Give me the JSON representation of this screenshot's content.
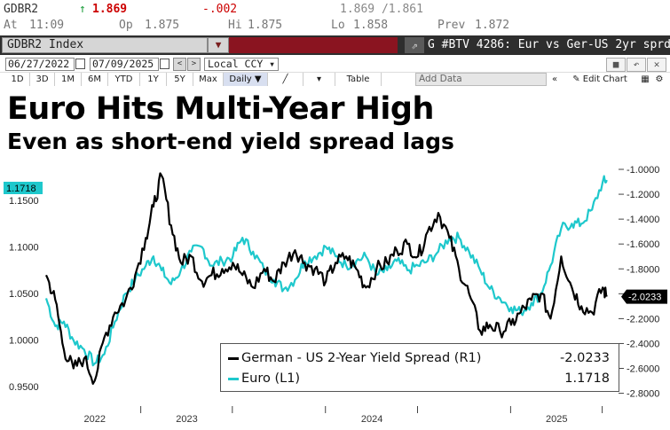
{
  "quote": {
    "ticker": "GDBR2",
    "arrow": "↑",
    "last": "1.869",
    "change": "-.002",
    "range": "1.869 /1.861",
    "at_label": "At",
    "time": "11:09",
    "open_label": "Op",
    "open": "1.875",
    "high_label": "Hi",
    "high": "1.875",
    "low_label": "Lo",
    "low": "1.858",
    "prev_label": "Prev",
    "prev": "1.872"
  },
  "security_bar": {
    "ticker_field": "GDBR2 Index",
    "dropdown_glyph": "▼",
    "external_glyph": "⇗",
    "title": "G #BTV 4286: Eur vs Ger-US 2yr sprd"
  },
  "date_bar": {
    "start_date": "06/27/2022",
    "end_date": "07/09/2025",
    "prev_glyph": "<",
    "next_glyph": ">",
    "currency": "Local CCY",
    "currency_glyph": "▾"
  },
  "timeframe_bar": {
    "buttons": [
      "1D",
      "3D",
      "1M",
      "6M",
      "YTD",
      "1Y",
      "5Y",
      "Max"
    ],
    "frequency": "Daily ▼",
    "table_label": "Table",
    "add_data_placeholder": "Add Data",
    "edit_chart": "Edit Chart",
    "collapse_glyph": "«"
  },
  "headline": {
    "title": "Euro Hits Multi-Year High",
    "subtitle": "Even as short-end yield spread lags"
  },
  "colors": {
    "euro": "#1ec8cc",
    "spread": "#000000",
    "last_up": "#cc0000",
    "change_down": "#cc0000",
    "title_bar": "#8a1420"
  },
  "chart_data": {
    "type": "line",
    "x_ticks": [
      "2022",
      "2023",
      "2024",
      "2025"
    ],
    "left_axis": {
      "ticks": [
        "0.9500",
        "1.0000",
        "1.0500",
        "1.1000",
        "1.1500"
      ],
      "range": [
        0.935,
        1.19
      ]
    },
    "right_axis": {
      "ticks": [
        "-2.8000",
        "-2.6000",
        "-2.4000",
        "-2.2000",
        "-2.0000",
        "-1.8000",
        "-1.6000",
        "-1.4000",
        "-1.2000",
        "-1.0000"
      ],
      "range": [
        -2.86,
        -0.95
      ]
    },
    "series": [
      {
        "name": "German - US 2-Year Yield Spread (R1)",
        "axis": "right",
        "last_label": "-2.0233",
        "x": [
          "2022-06-27",
          "2022-07-15",
          "2022-08-01",
          "2022-08-20",
          "2022-09-10",
          "2022-10-01",
          "2022-10-20",
          "2022-11-10",
          "2022-12-01",
          "2022-12-20",
          "2023-01-10",
          "2023-01-25",
          "2023-02-10",
          "2023-03-01",
          "2023-03-20",
          "2023-04-10",
          "2023-05-01",
          "2023-05-20",
          "2023-06-10",
          "2023-07-01",
          "2023-07-20",
          "2023-08-10",
          "2023-09-01",
          "2023-09-20",
          "2023-10-10",
          "2023-11-01",
          "2023-11-20",
          "2023-12-10",
          "2024-01-01",
          "2024-01-20",
          "2024-02-10",
          "2024-03-01",
          "2024-03-20",
          "2024-04-10",
          "2024-05-01",
          "2024-05-20",
          "2024-06-10",
          "2024-07-01",
          "2024-07-20",
          "2024-08-10",
          "2024-09-01",
          "2024-09-20",
          "2024-10-10",
          "2024-11-01",
          "2024-11-20",
          "2024-12-10",
          "2025-01-01",
          "2025-01-20",
          "2025-02-10",
          "2025-03-01",
          "2025-03-20",
          "2025-04-10",
          "2025-05-01",
          "2025-05-20",
          "2025-06-10",
          "2025-07-01",
          "2025-07-09"
        ],
        "values": [
          -1.85,
          -2.05,
          -2.45,
          -2.6,
          -2.52,
          -2.7,
          -2.35,
          -2.15,
          -2.05,
          -1.85,
          -1.55,
          -1.3,
          -1.05,
          -1.45,
          -1.75,
          -1.7,
          -1.9,
          -1.85,
          -1.8,
          -1.75,
          -1.85,
          -1.95,
          -1.8,
          -1.9,
          -1.75,
          -1.65,
          -1.75,
          -1.8,
          -1.9,
          -1.75,
          -1.7,
          -1.8,
          -1.95,
          -1.8,
          -1.75,
          -1.65,
          -1.6,
          -1.7,
          -1.5,
          -1.35,
          -1.55,
          -1.8,
          -2.0,
          -2.3,
          -2.25,
          -2.3,
          -2.25,
          -2.15,
          -2.05,
          -2.0,
          -2.2,
          -1.7,
          -1.95,
          -2.1,
          -2.15,
          -1.95,
          -2.0233
        ]
      },
      {
        "name": "Euro (L1)",
        "axis": "left",
        "last_label": "1.1718",
        "x": [
          "2022-06-27",
          "2022-07-15",
          "2022-08-01",
          "2022-08-20",
          "2022-09-10",
          "2022-10-01",
          "2022-10-20",
          "2022-11-10",
          "2022-12-01",
          "2022-12-20",
          "2023-01-10",
          "2023-01-25",
          "2023-02-10",
          "2023-03-01",
          "2023-03-20",
          "2023-04-10",
          "2023-05-01",
          "2023-05-20",
          "2023-06-10",
          "2023-07-01",
          "2023-07-20",
          "2023-08-10",
          "2023-09-01",
          "2023-09-20",
          "2023-10-10",
          "2023-11-01",
          "2023-11-20",
          "2023-12-10",
          "2024-01-01",
          "2024-01-20",
          "2024-02-10",
          "2024-03-01",
          "2024-03-20",
          "2024-04-10",
          "2024-05-01",
          "2024-05-20",
          "2024-06-10",
          "2024-07-01",
          "2024-07-20",
          "2024-08-10",
          "2024-09-01",
          "2024-09-20",
          "2024-10-10",
          "2024-11-01",
          "2024-11-20",
          "2024-12-10",
          "2025-01-01",
          "2025-01-20",
          "2025-02-10",
          "2025-03-01",
          "2025-03-20",
          "2025-04-10",
          "2025-05-01",
          "2025-05-20",
          "2025-06-10",
          "2025-07-01",
          "2025-07-09"
        ],
        "values": [
          1.045,
          1.015,
          1.02,
          1.0,
          0.99,
          0.975,
          0.985,
          1.02,
          1.05,
          1.065,
          1.08,
          1.09,
          1.075,
          1.06,
          1.075,
          1.095,
          1.1,
          1.08,
          1.085,
          1.09,
          1.11,
          1.095,
          1.075,
          1.065,
          1.055,
          1.065,
          1.085,
          1.09,
          1.1,
          1.09,
          1.08,
          1.085,
          1.09,
          1.07,
          1.075,
          1.085,
          1.075,
          1.08,
          1.085,
          1.095,
          1.11,
          1.11,
          1.095,
          1.075,
          1.055,
          1.045,
          1.035,
          1.03,
          1.04,
          1.05,
          1.08,
          1.12,
          1.125,
          1.125,
          1.14,
          1.17,
          1.1718
        ]
      }
    ],
    "grid": false,
    "legend": "bottom-right"
  }
}
